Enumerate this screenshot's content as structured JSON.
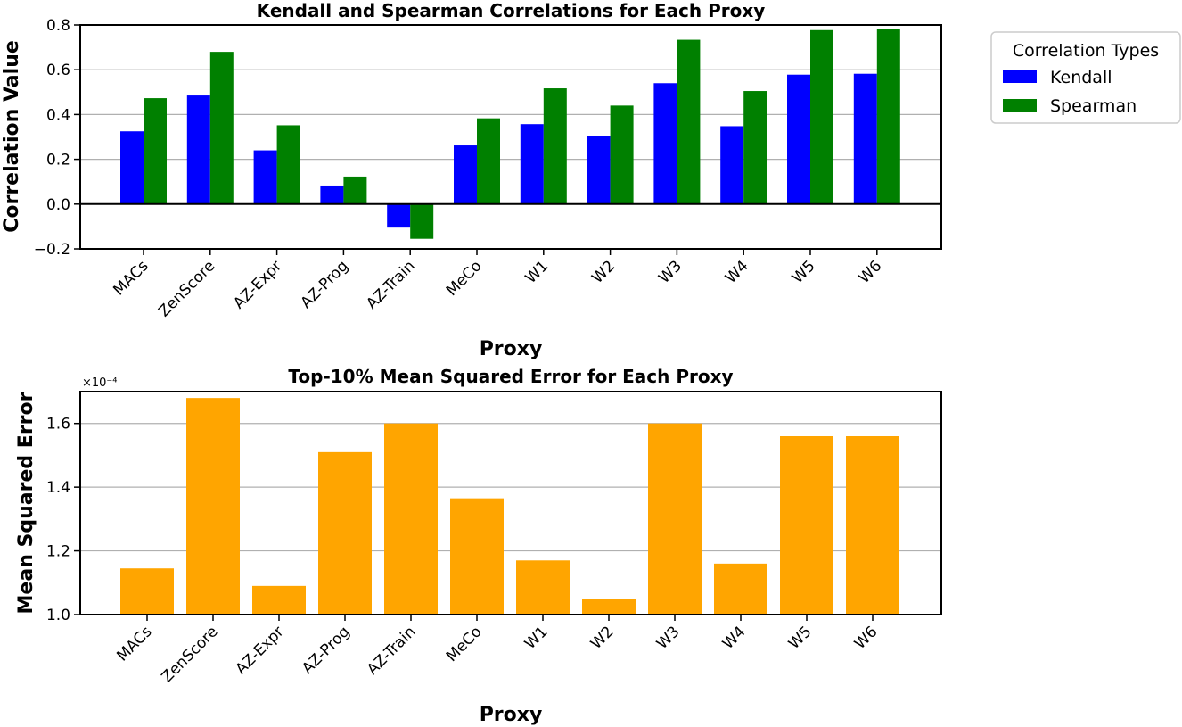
{
  "chart_data": [
    {
      "type": "bar",
      "title": "Kendall and Spearman Correlations for Each Proxy",
      "xlabel": "Proxy",
      "ylabel": "Correlation Value",
      "categories": [
        "MACs",
        "ZenScore",
        "AZ-Expr",
        "AZ-Prog",
        "AZ-Train",
        "MeCo",
        "W1",
        "W2",
        "W3",
        "W4",
        "W5",
        "W6"
      ],
      "series": [
        {
          "name": "Kendall",
          "color": "#0000ff",
          "values": [
            0.325,
            0.485,
            0.24,
            0.083,
            -0.105,
            0.262,
            0.357,
            0.303,
            0.54,
            0.348,
            0.578,
            0.582
          ]
        },
        {
          "name": "Spearman",
          "color": "#008000",
          "values": [
            0.473,
            0.68,
            0.352,
            0.123,
            -0.155,
            0.383,
            0.517,
            0.44,
            0.734,
            0.505,
            0.777,
            0.782
          ]
        }
      ],
      "ylim": [
        -0.2,
        0.8
      ],
      "yticks": [
        -0.2,
        0.0,
        0.2,
        0.4,
        0.6,
        0.8
      ],
      "ytick_labels": [
        "−0.2",
        "0.0",
        "0.2",
        "0.4",
        "0.6",
        "0.8"
      ],
      "grid": "horizontal",
      "legend": {
        "title": "Correlation Types",
        "placement": "outside-top-right"
      }
    },
    {
      "type": "bar",
      "title": "Top-10% Mean Squared Error for Each Proxy",
      "xlabel": "Proxy",
      "ylabel": "Mean Squared Error",
      "categories": [
        "MACs",
        "ZenScore",
        "AZ-Expr",
        "AZ-Prog",
        "AZ-Train",
        "MeCo",
        "W1",
        "W2",
        "W3",
        "W4",
        "W5",
        "W6"
      ],
      "series": [
        {
          "color": "#ffa500",
          "values": [
            1.145,
            1.68,
            1.09,
            1.51,
            1.6,
            1.365,
            1.17,
            1.05,
            1.6,
            1.16,
            1.56,
            1.56
          ]
        }
      ],
      "ylim": [
        1.0,
        1.7
      ],
      "yticks": [
        1.0,
        1.2,
        1.4,
        1.6
      ],
      "ytick_labels": [
        "1.0",
        "1.2",
        "1.4",
        "1.6"
      ],
      "axis_offset_label": "×10⁻⁴",
      "grid": "horizontal"
    }
  ]
}
